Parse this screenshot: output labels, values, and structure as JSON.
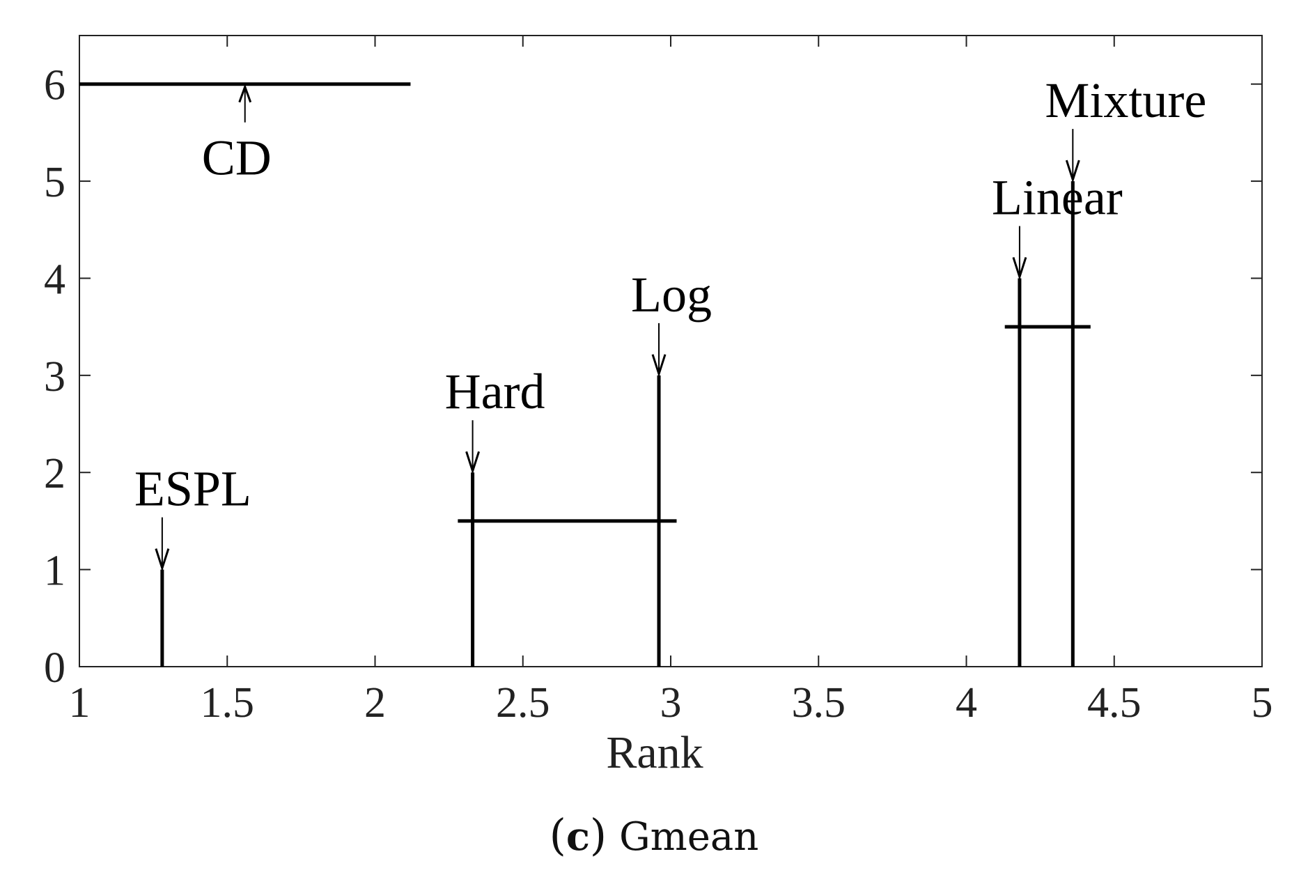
{
  "chart_data": {
    "type": "critical-difference",
    "xlabel": "Rank",
    "xlim": [
      1,
      5
    ],
    "ylim": [
      0,
      6.5
    ],
    "x_ticks": [
      "1",
      "1.5",
      "2",
      "2.5",
      "3",
      "3.5",
      "4",
      "4.5",
      "5"
    ],
    "y_ticks": [
      "0",
      "1",
      "2",
      "3",
      "4",
      "5",
      "6"
    ],
    "methods": [
      {
        "name": "ESPL",
        "rank": 1.28,
        "height": 1
      },
      {
        "name": "Hard",
        "rank": 2.33,
        "height": 2
      },
      {
        "name": "Log",
        "rank": 2.96,
        "height": 3
      },
      {
        "name": "Linear",
        "rank": 4.18,
        "height": 4
      },
      {
        "name": "Mixture",
        "rank": 4.36,
        "height": 5
      }
    ],
    "cd": {
      "label": "CD",
      "start": 1.0,
      "end": 2.12,
      "y": 6
    },
    "groups": [
      {
        "start": 2.28,
        "end": 3.02,
        "y": 1.5
      },
      {
        "start": 4.13,
        "end": 4.42,
        "y": 3.5
      }
    ],
    "grid": false,
    "line_color": "#000000"
  },
  "caption": {
    "open": "(",
    "tag": "c",
    "close": ")",
    "text": "Gmean"
  }
}
